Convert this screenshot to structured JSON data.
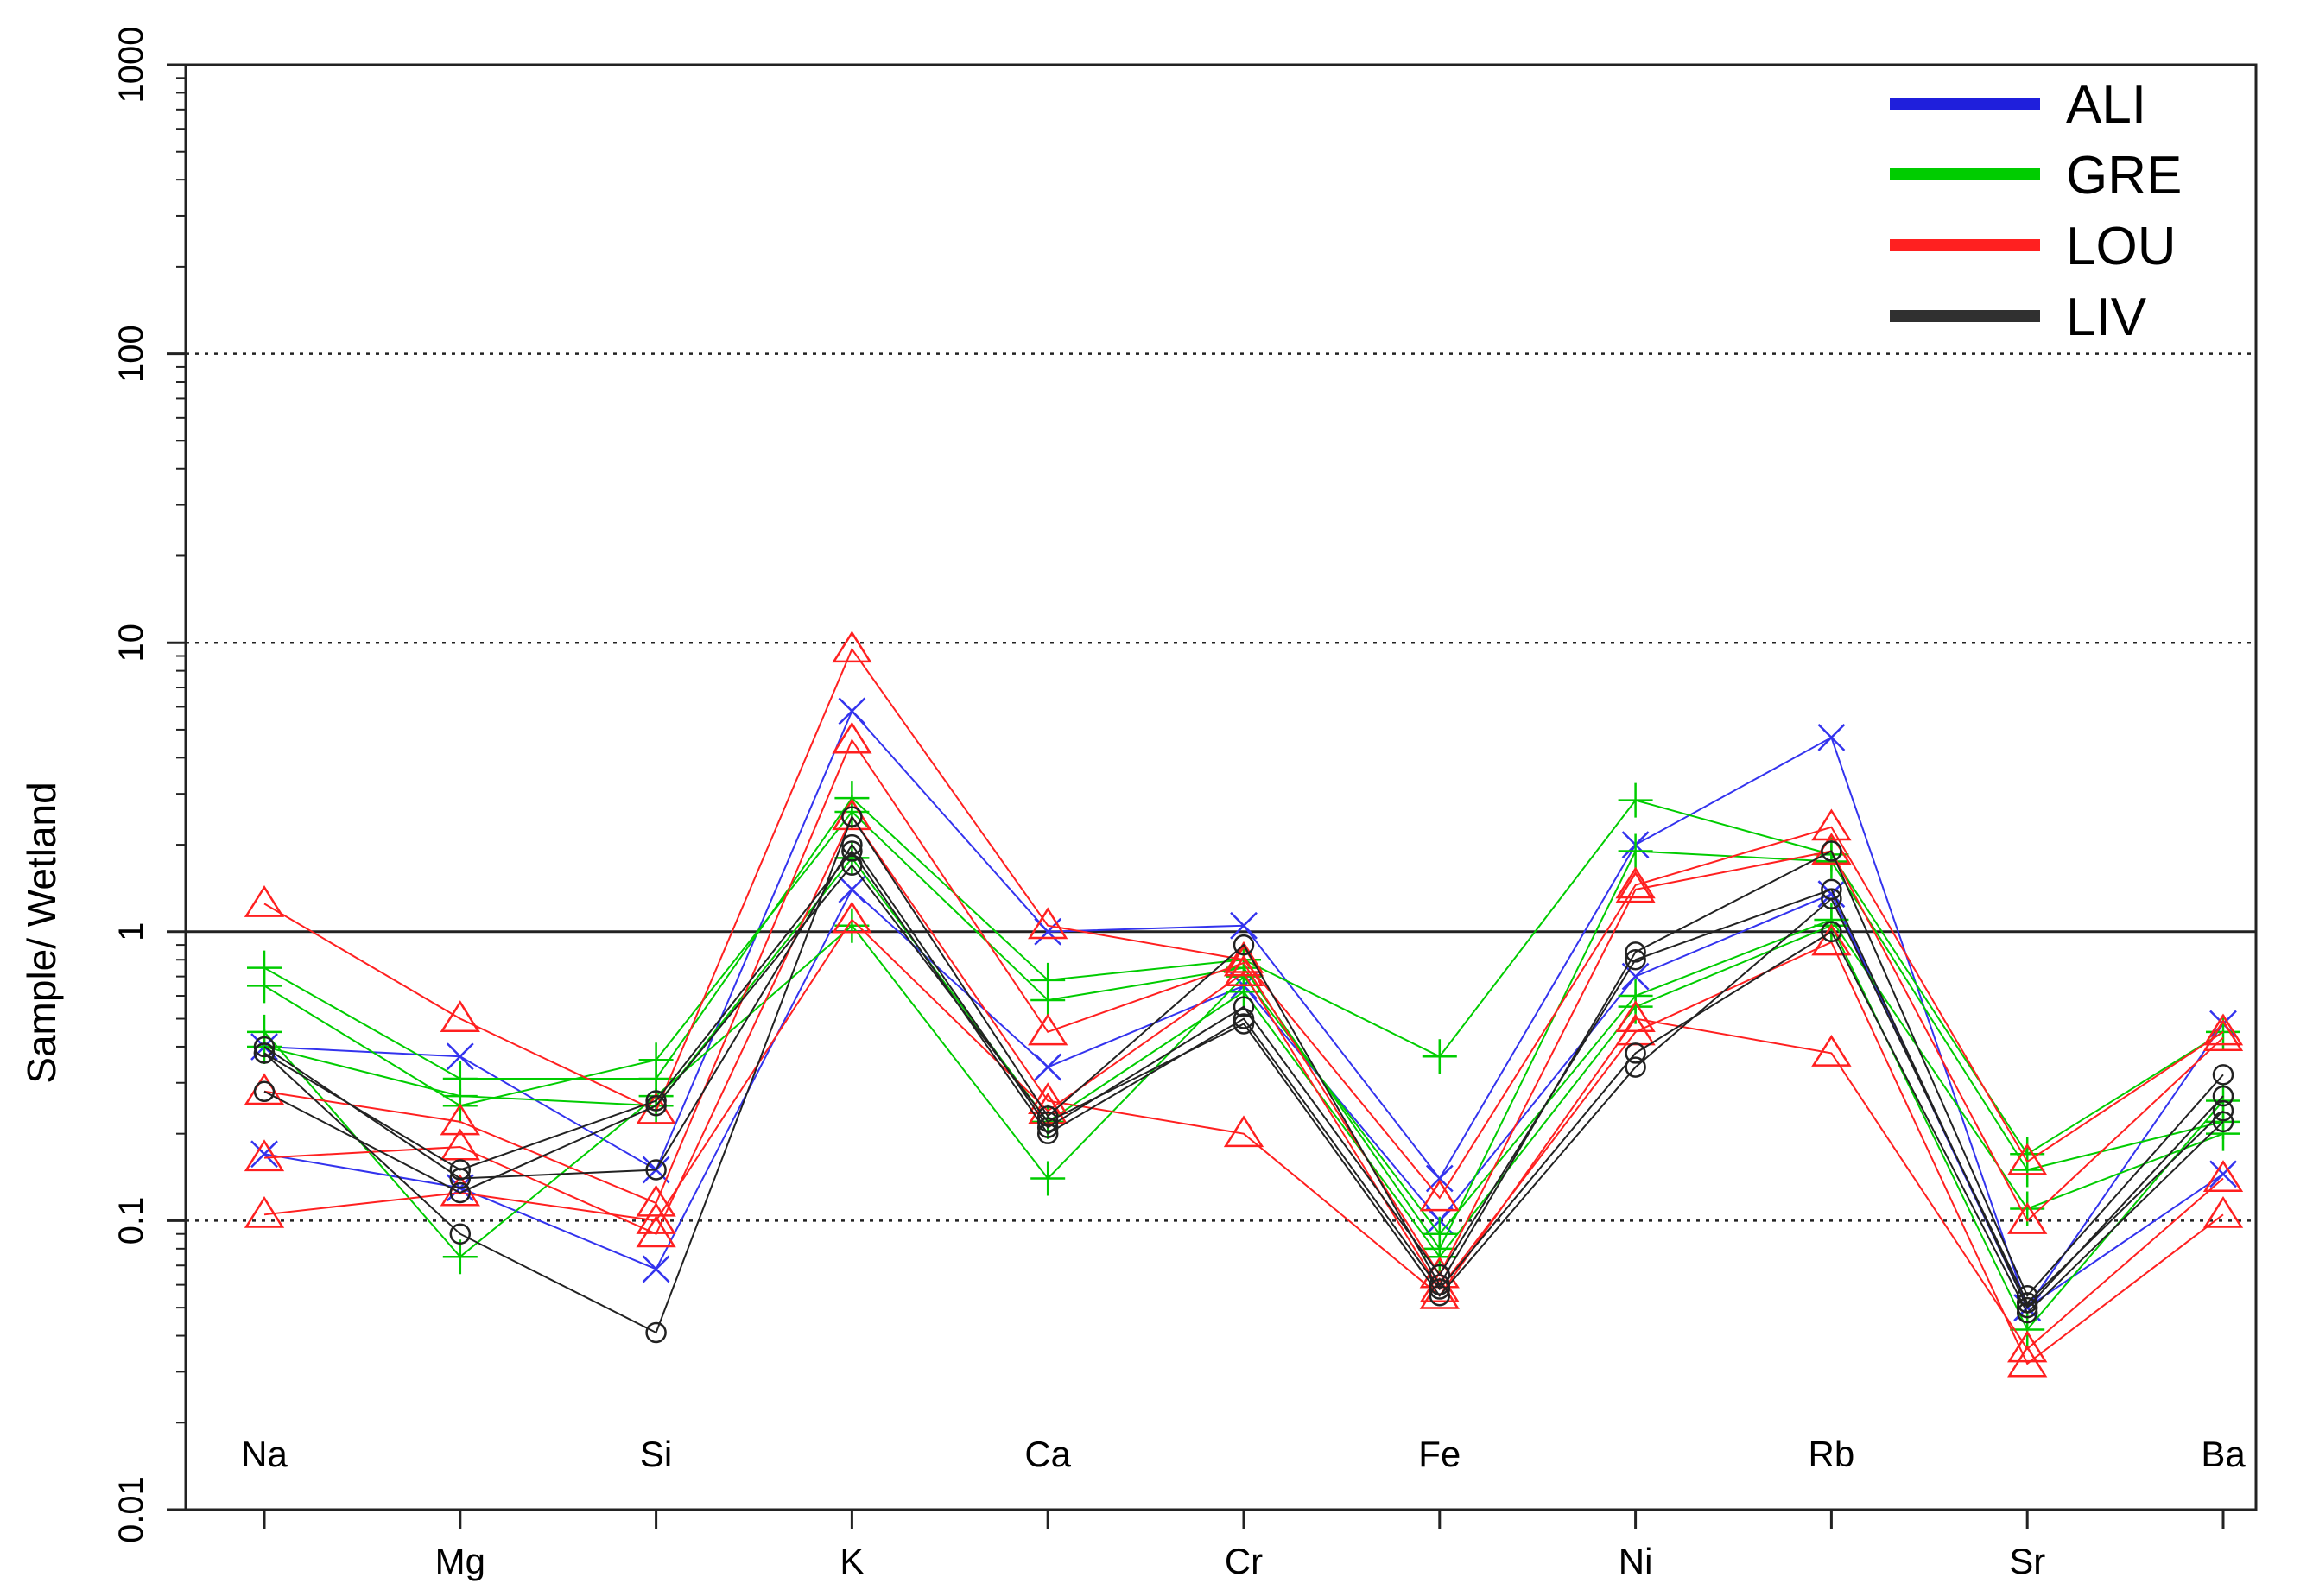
{
  "chart_data": {
    "type": "line",
    "scale": "log",
    "ylabel": "Sample/ Wetland",
    "xlabel": "",
    "title": "",
    "ylim": [
      0.01,
      1000
    ],
    "y_ticks": [
      "0.01",
      "0.1",
      "1",
      "10",
      "100",
      "1000"
    ],
    "y_tick_values": [
      0.01,
      0.1,
      1,
      10,
      100,
      1000
    ],
    "categories": [
      "Na",
      "Mg",
      "Si",
      "K",
      "Ca",
      "Cr",
      "Fe",
      "Ni",
      "Rb",
      "Sr",
      "Ba"
    ],
    "reference_lines": [
      {
        "value": 1,
        "style": "solid"
      },
      {
        "value": 0.1,
        "style": "dotted"
      },
      {
        "value": 10,
        "style": "dotted"
      },
      {
        "value": 100,
        "style": "dotted"
      }
    ],
    "legend_position": "top-right",
    "legend": [
      {
        "name": "ALI",
        "color": "#1f1fdc"
      },
      {
        "name": "GRE",
        "color": "#00cc00"
      },
      {
        "name": "LOU",
        "color": "#ff2020"
      },
      {
        "name": "LIV",
        "color": "#303030"
      }
    ],
    "series": [
      {
        "group": "ALI",
        "marker": "x",
        "color": "#3333ee",
        "values": [
          0.4,
          0.37,
          0.15,
          5.8,
          1.0,
          1.05,
          0.14,
          2.0,
          4.7,
          0.05,
          0.48
        ]
      },
      {
        "group": "ALI",
        "marker": "x",
        "color": "#3333ee",
        "values": [
          0.17,
          0.13,
          0.068,
          1.4,
          0.34,
          0.65,
          0.1,
          0.7,
          1.35,
          0.05,
          0.145
        ]
      },
      {
        "group": "GRE",
        "marker": "+",
        "color": "#00cc00",
        "values": [
          0.75,
          0.31,
          0.31,
          2.9,
          0.68,
          0.8,
          0.37,
          2.85,
          1.85,
          0.17,
          0.45
        ]
      },
      {
        "group": "GRE",
        "marker": "+",
        "color": "#00cc00",
        "values": [
          0.65,
          0.25,
          0.36,
          2.6,
          0.58,
          0.75,
          0.08,
          1.9,
          1.75,
          0.15,
          0.22
        ]
      },
      {
        "group": "GRE",
        "marker": "+",
        "color": "#00cc00",
        "values": [
          0.45,
          0.075,
          0.27,
          1.05,
          0.14,
          0.7,
          0.09,
          0.6,
          1.1,
          0.11,
          0.2
        ]
      },
      {
        "group": "GRE",
        "marker": "+",
        "color": "#00cc00",
        "values": [
          0.4,
          0.27,
          0.25,
          1.8,
          0.22,
          0.62,
          0.075,
          0.55,
          1.05,
          0.042,
          0.26
        ]
      },
      {
        "group": "LOU",
        "marker": "triangle",
        "color": "#ff2020",
        "values": [
          1.25,
          0.5,
          0.24,
          9.5,
          1.05,
          0.8,
          0.12,
          1.45,
          2.3,
          0.16,
          0.45
        ]
      },
      {
        "group": "LOU",
        "marker": "triangle",
        "color": "#ff2020",
        "values": [
          0.28,
          0.22,
          0.115,
          4.6,
          0.45,
          0.78,
          0.065,
          1.4,
          1.9,
          0.1,
          0.43
        ]
      },
      {
        "group": "LOU",
        "marker": "triangle",
        "color": "#ff2020",
        "values": [
          0.165,
          0.18,
          0.09,
          2.5,
          0.26,
          0.2,
          0.055,
          0.5,
          0.38,
          0.036,
          0.14
        ]
      },
      {
        "group": "LOU",
        "marker": "triangle",
        "color": "#ff2020",
        "values": [
          0.105,
          0.125,
          0.1,
          1.1,
          0.24,
          0.72,
          0.058,
          0.45,
          0.92,
          0.032,
          0.105
        ]
      },
      {
        "group": "LIV",
        "marker": "circle",
        "color": "#222222",
        "values": [
          0.38,
          0.09,
          0.041,
          2.5,
          0.23,
          0.9,
          0.06,
          0.85,
          1.9,
          0.055,
          0.32
        ]
      },
      {
        "group": "LIV",
        "marker": "circle",
        "color": "#222222",
        "values": [
          0.4,
          0.14,
          0.15,
          2.0,
          0.21,
          0.55,
          0.065,
          0.8,
          1.4,
          0.05,
          0.27
        ]
      },
      {
        "group": "LIV",
        "marker": "circle",
        "color": "#222222",
        "values": [
          0.38,
          0.15,
          0.26,
          1.9,
          0.2,
          0.5,
          0.058,
          0.38,
          1.0,
          0.048,
          0.22
        ]
      },
      {
        "group": "LIV",
        "marker": "circle",
        "color": "#222222",
        "values": [
          0.28,
          0.125,
          0.25,
          1.7,
          0.22,
          0.48,
          0.055,
          0.34,
          1.3,
          0.052,
          0.24
        ]
      }
    ]
  }
}
